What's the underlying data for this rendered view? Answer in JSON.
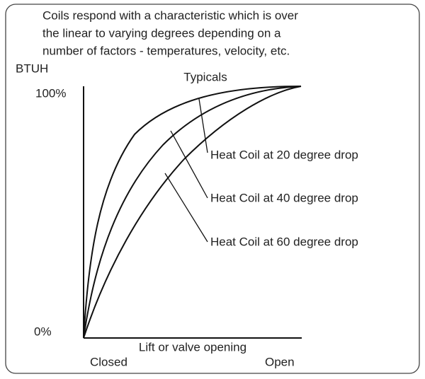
{
  "caption": [
    "Coils respond with a characteristic which is over",
    "the linear to varying degrees depending on a",
    "number of factors - temperatures, velocity, etc."
  ],
  "y_axis_label": "BTUH",
  "title": "Typicals",
  "y_top": "100%",
  "y_bottom": "0%",
  "x_axis_label": "Lift or valve opening",
  "x_left": "Closed",
  "x_right": "Open",
  "curves": [
    {
      "label": "Heat Coil at 20 degree drop"
    },
    {
      "label": "Heat Coil at 40 degree drop"
    },
    {
      "label": "Heat Coil at 60 degree drop"
    }
  ]
}
